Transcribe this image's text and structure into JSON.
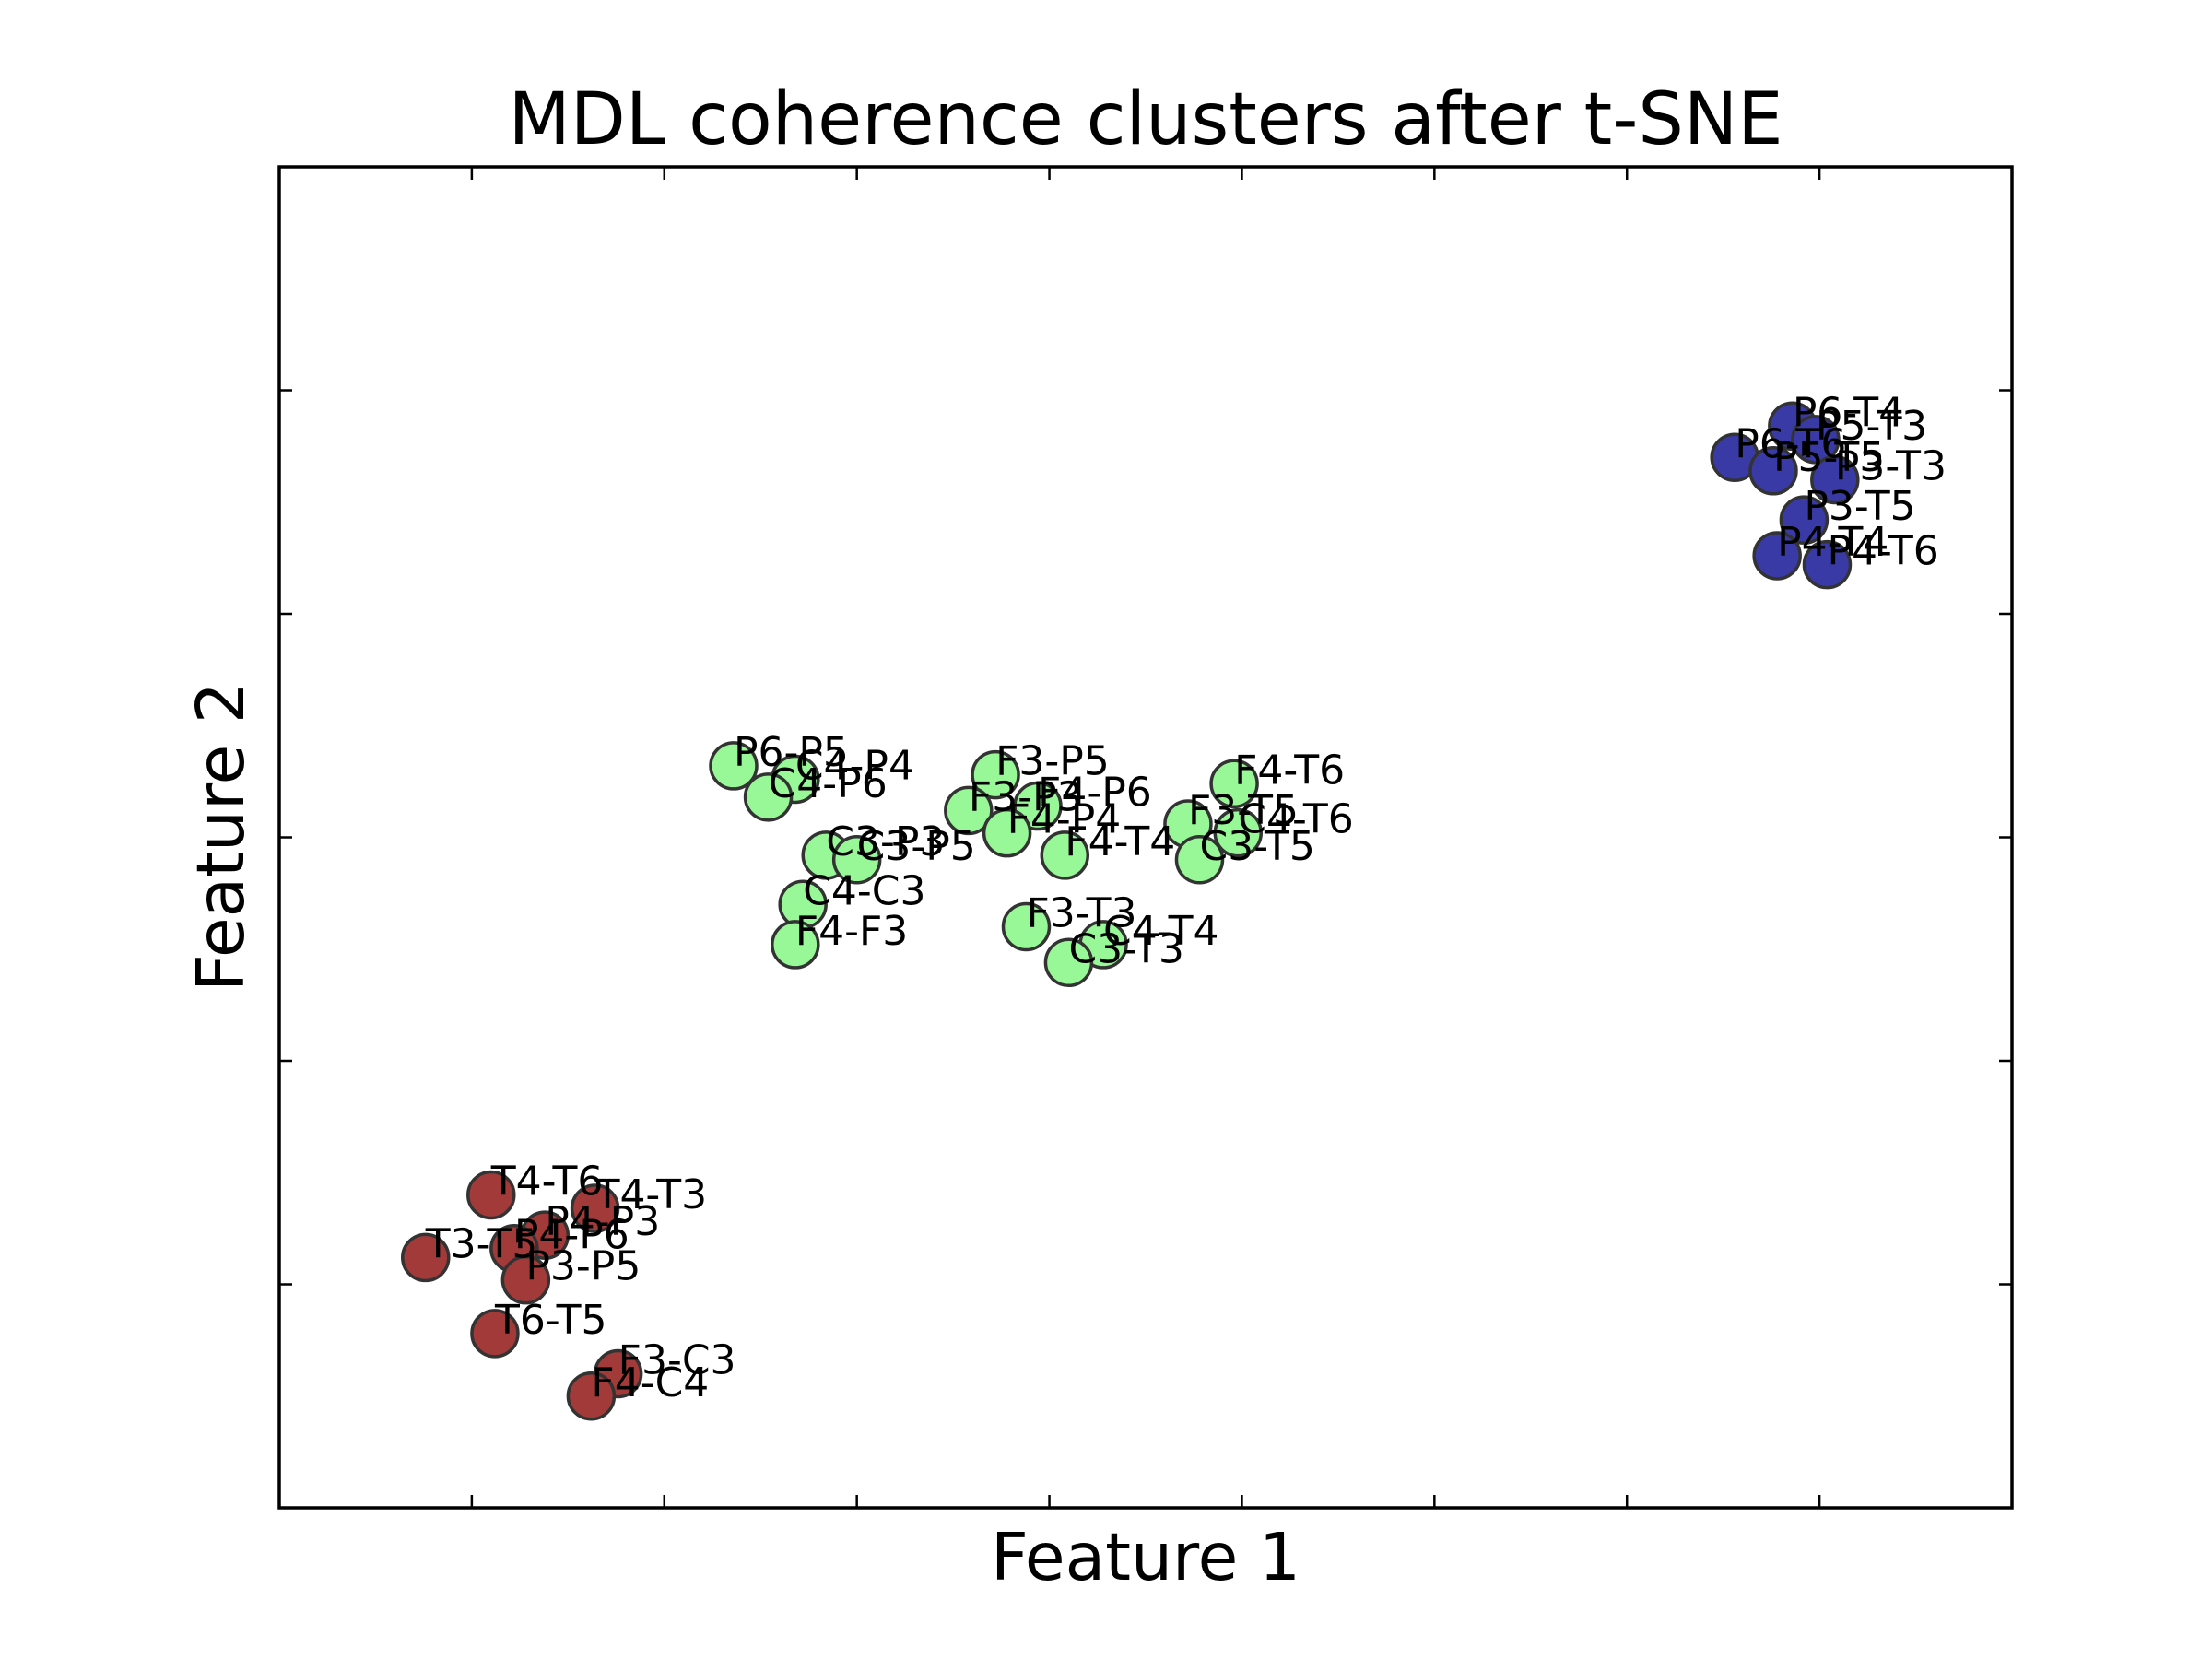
{
  "chart_data": {
    "type": "scatter",
    "title": "MDL coherence clusters after t-SNE",
    "xlabel": "Feature 1",
    "ylabel": "Feature 2",
    "xlim": [
      -20,
      25
    ],
    "ylim": [
      -25,
      5
    ],
    "xticks": [
      -15,
      -10,
      -5,
      0,
      5,
      10,
      15,
      20
    ],
    "yticks": [
      -20,
      -15,
      -10,
      -5,
      0
    ],
    "tick_labels_visible": false,
    "grid": false,
    "colors": {
      "red": "#a33a3a",
      "green": "#98f898",
      "blue": "#3a3aa6"
    },
    "series": [
      {
        "color": "#98f898",
        "points": [
          {
            "label": "P6-P5",
            "x": -8.2,
            "y": -8.4
          },
          {
            "label": "C4-P4",
            "x": -6.6,
            "y": -8.7
          },
          {
            "label": "C4-P6",
            "x": -7.3,
            "y": -9.1
          },
          {
            "label": "C3-P3",
            "x": -5.8,
            "y": -10.4
          },
          {
            "label": "C3-P5",
            "x": -5.0,
            "y": -10.5
          },
          {
            "label": "C4-C3",
            "x": -6.4,
            "y": -11.5
          },
          {
            "label": "F4-F3",
            "x": -6.6,
            "y": -12.4
          },
          {
            "label": "F3-P5",
            "x": -1.4,
            "y": -8.6
          },
          {
            "label": "F3-P3",
            "x": -2.1,
            "y": -9.4
          },
          {
            "label": "F4-P6",
            "x": -0.3,
            "y": -9.3
          },
          {
            "label": "F4-P4",
            "x": -1.1,
            "y": -9.9
          },
          {
            "label": "F4-T4",
            "x": 0.4,
            "y": -10.4
          },
          {
            "label": "F3-T3",
            "x": -0.6,
            "y": -12.0
          },
          {
            "label": "C4-T4",
            "x": 1.4,
            "y": -12.4
          },
          {
            "label": "C3-T3",
            "x": 0.5,
            "y": -12.8
          },
          {
            "label": "F4-T6",
            "x": 4.8,
            "y": -8.8
          },
          {
            "label": "F3-T5",
            "x": 3.6,
            "y": -9.7
          },
          {
            "label": "C4-T6",
            "x": 4.9,
            "y": -9.9
          },
          {
            "label": "C3-T5",
            "x": 3.9,
            "y": -10.5
          }
        ]
      },
      {
        "color": "#a33a3a",
        "points": [
          {
            "label": "T4-T6",
            "x": -14.5,
            "y": -18.0
          },
          {
            "label": "T4-T3",
            "x": -11.8,
            "y": -18.3
          },
          {
            "label": "P4-P3",
            "x": -13.1,
            "y": -18.9
          },
          {
            "label": "P4-P6",
            "x": -13.9,
            "y": -19.2
          },
          {
            "label": "T3-T5",
            "x": -16.2,
            "y": -19.4
          },
          {
            "label": "P3-P5",
            "x": -13.6,
            "y": -19.9
          },
          {
            "label": "T6-T5",
            "x": -14.4,
            "y": -21.1
          },
          {
            "label": "F3-C3",
            "x": -11.2,
            "y": -22.0
          },
          {
            "label": "F4-C4",
            "x": -11.9,
            "y": -22.5
          }
        ]
      },
      {
        "color": "#3a3aa6",
        "points": [
          {
            "label": "P6-T4",
            "x": 19.3,
            "y": -0.8
          },
          {
            "label": "P5-T3",
            "x": 19.9,
            "y": -1.1
          },
          {
            "label": "P6-T6",
            "x": 17.8,
            "y": -1.5
          },
          {
            "label": "P5-T5",
            "x": 18.8,
            "y": -1.8
          },
          {
            "label": "P3-T3",
            "x": 20.4,
            "y": -2.0
          },
          {
            "label": "P3-T5",
            "x": 19.6,
            "y": -2.9
          },
          {
            "label": "P4-T4",
            "x": 18.9,
            "y": -3.7
          },
          {
            "label": "P4-T6",
            "x": 20.2,
            "y": -3.9
          }
        ]
      }
    ]
  }
}
